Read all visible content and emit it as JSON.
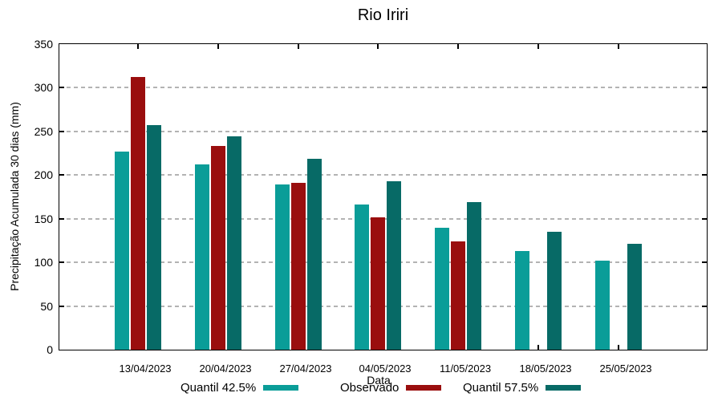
{
  "chart_data": {
    "type": "bar",
    "title": "Rio Iriri",
    "xlabel": "Data",
    "ylabel": "Precipitação Acumulada 30 dias (mm)",
    "categories": [
      "13/04/2023",
      "20/04/2023",
      "27/04/2023",
      "04/05/2023",
      "11/05/2023",
      "18/05/2023",
      "25/05/2023"
    ],
    "series": [
      {
        "name": "Quantil 42.5%",
        "color": "#0a9d98",
        "values": [
          227,
          212,
          189,
          166,
          140,
          113,
          102
        ]
      },
      {
        "name": "Observado",
        "color": "#9a0e0e",
        "values": [
          312,
          233,
          191,
          152,
          124,
          null,
          null
        ]
      },
      {
        "name": "Quantil 57.5%",
        "color": "#076a66",
        "values": [
          257,
          244,
          219,
          193,
          169,
          135,
          121
        ]
      }
    ],
    "ylim": [
      0,
      350
    ],
    "yticks": [
      0,
      50,
      100,
      150,
      200,
      250,
      300,
      350
    ],
    "grid": "horizontal dashed",
    "grid_color": "#b3b3b3",
    "legend_position": "bottom"
  }
}
